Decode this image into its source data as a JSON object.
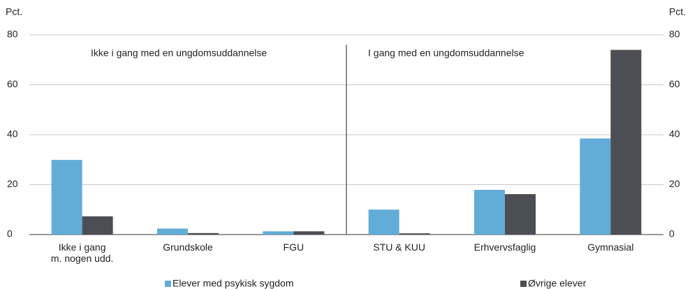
{
  "chart_data": {
    "type": "bar",
    "y_label": "Pct.",
    "annotations": [
      "Ikke i gang med en ungdomsuddannelse",
      "I gang med en ungdomsuddannelse"
    ],
    "categories": [
      "Ikke i gang\nm. nogen udd.",
      "Grundskole",
      "FGU",
      "STU & KUU",
      "Erhvervsfaglig",
      "Gymnasial"
    ],
    "series": [
      {
        "name": "Elever med psykisk sygdom",
        "color": "#62acd8",
        "values": [
          29.9,
          2.4,
          1.3,
          10,
          17.9,
          38.5
        ]
      },
      {
        "name": "Øvrige elever",
        "color": "#4d4e53",
        "values": [
          7.3,
          0.6,
          1.3,
          0.5,
          16.2,
          74
        ]
      }
    ],
    "ylim": [
      0,
      80
    ],
    "yticks": [
      0,
      20,
      40,
      60,
      80
    ],
    "grid": true,
    "legend": "bottom"
  }
}
